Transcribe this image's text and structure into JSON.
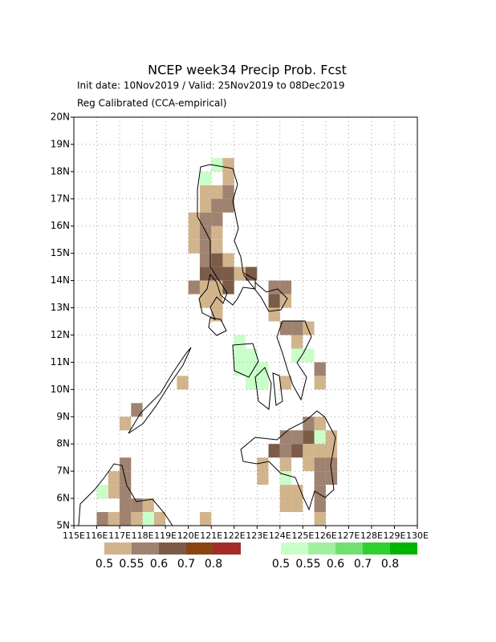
{
  "chart_data": {
    "type": "map",
    "title": "NCEP week34 Precip Prob. Fcst",
    "subtitle": "Init date: 10Nov2019 / Valid: 25Nov2019 to 08Dec2019",
    "note": "Reg Calibrated (CCA-empirical)",
    "xlim": [
      115,
      130
    ],
    "ylim": [
      5,
      20
    ],
    "grid": true,
    "xticks": [
      {
        "value": 115,
        "label": "115E"
      },
      {
        "value": 116,
        "label": "116E"
      },
      {
        "value": 117,
        "label": "117E"
      },
      {
        "value": 118,
        "label": "118E"
      },
      {
        "value": 119,
        "label": "119E"
      },
      {
        "value": 120,
        "label": "120E"
      },
      {
        "value": 121,
        "label": "121E"
      },
      {
        "value": 122,
        "label": "122E"
      },
      {
        "value": 123,
        "label": "123E"
      },
      {
        "value": 124,
        "label": "124E"
      },
      {
        "value": 125,
        "label": "125E"
      },
      {
        "value": 126,
        "label": "126E"
      },
      {
        "value": 127,
        "label": "127E"
      },
      {
        "value": 128,
        "label": "128E"
      },
      {
        "value": 129,
        "label": "129E"
      },
      {
        "value": 130,
        "label": "130E"
      }
    ],
    "yticks": [
      {
        "value": 5,
        "label": "5N"
      },
      {
        "value": 6,
        "label": "6N"
      },
      {
        "value": 7,
        "label": "7N"
      },
      {
        "value": 8,
        "label": "8N"
      },
      {
        "value": 9,
        "label": "9N"
      },
      {
        "value": 10,
        "label": "10N"
      },
      {
        "value": 11,
        "label": "11N"
      },
      {
        "value": 12,
        "label": "12N"
      },
      {
        "value": 13,
        "label": "13N"
      },
      {
        "value": 14,
        "label": "14N"
      },
      {
        "value": 15,
        "label": "15N"
      },
      {
        "value": 16,
        "label": "16N"
      },
      {
        "value": 17,
        "label": "17N"
      },
      {
        "value": 18,
        "label": "18N"
      },
      {
        "value": 19,
        "label": "19N"
      },
      {
        "value": 20,
        "label": "20N"
      }
    ],
    "colorbars": [
      {
        "ticks": [
          0.5,
          0.55,
          0.6,
          0.7,
          0.8
        ],
        "colors": [
          "#d2b48c",
          "#a08270",
          "#7c5c48",
          "#8b4513",
          "#a52a2a"
        ]
      },
      {
        "ticks": [
          0.5,
          0.55,
          0.6,
          0.7,
          0.8
        ],
        "colors": [
          "#c8ffc8",
          "#a0f0a0",
          "#70e070",
          "#30d030",
          "#00b400"
        ]
      }
    ],
    "dry_cells": {
      "lon": [
        121.5,
        121.5,
        120.5,
        121.0,
        121.5,
        120.5,
        121.0,
        121.5,
        120.0,
        120.5,
        121.0,
        120.0,
        120.5,
        121.0,
        120.0,
        120.5,
        121.0,
        120.5,
        121.0,
        121.5,
        120.5,
        121.0,
        121.5,
        122.0,
        122.5,
        120.0,
        120.5,
        121.0,
        121.5,
        120.5,
        121.0,
        121.0,
        123.5,
        124.0,
        123.5,
        124.0,
        123.5,
        124.0,
        124.5,
        125.0,
        124.5,
        125.5,
        125.5,
        124.0,
        125.0,
        125.5,
        124.0,
        124.5,
        125.0,
        125.5,
        126.0,
        123.5,
        124.0,
        124.5,
        125.0,
        125.5,
        126.0,
        123.0,
        124.0,
        125.0,
        125.5,
        126.0,
        123.0,
        125.5,
        126.0,
        124.0,
        124.5,
        125.5,
        124.0,
        124.5,
        125.5,
        125.5,
        117.5,
        117.0,
        117.0,
        116.5,
        117.0,
        116.5,
        117.0,
        117.0,
        117.5,
        118.0,
        116.0,
        116.5,
        117.0,
        117.5,
        118.5,
        119.5,
        120.5
      ],
      "lat": [
        18.0,
        17.5,
        17.0,
        17.0,
        17.0,
        16.5,
        16.5,
        16.5,
        16.0,
        16.0,
        16.0,
        15.5,
        15.5,
        15.5,
        15.0,
        15.0,
        15.0,
        14.5,
        14.5,
        14.5,
        14.0,
        14.0,
        14.0,
        14.0,
        14.0,
        13.5,
        13.5,
        13.5,
        13.5,
        13.0,
        13.0,
        12.5,
        13.5,
        13.5,
        13.0,
        13.0,
        12.5,
        12.0,
        12.0,
        12.0,
        11.5,
        10.5,
        10.0,
        10.0,
        8.5,
        8.5,
        8.0,
        8.0,
        8.0,
        8.0,
        8.0,
        7.5,
        7.5,
        7.5,
        7.5,
        7.5,
        7.5,
        7.0,
        7.0,
        7.0,
        7.0,
        7.0,
        6.5,
        6.5,
        6.5,
        6.0,
        6.0,
        6.0,
        5.5,
        5.5,
        5.5,
        5.0,
        9.0,
        8.5,
        7.0,
        6.5,
        6.5,
        6.0,
        6.0,
        5.5,
        5.5,
        5.5,
        5.0,
        5.0,
        5.0,
        5.0,
        5.0,
        10.0,
        5.0
      ],
      "values": [
        0.52,
        0.52,
        0.52,
        0.52,
        0.57,
        0.52,
        0.57,
        0.57,
        0.52,
        0.57,
        0.57,
        0.52,
        0.57,
        0.52,
        0.52,
        0.57,
        0.52,
        0.57,
        0.62,
        0.52,
        0.62,
        0.62,
        0.62,
        0.52,
        0.62,
        0.57,
        0.52,
        0.52,
        0.62,
        0.52,
        0.52,
        0.52,
        0.57,
        0.57,
        0.62,
        0.52,
        0.52,
        0.57,
        0.57,
        0.52,
        0.52,
        0.57,
        0.52,
        0.52,
        0.57,
        0.52,
        0.57,
        0.57,
        0.62,
        0.52,
        0.52,
        0.62,
        0.57,
        0.62,
        0.52,
        0.52,
        0.52,
        0.52,
        0.52,
        0.52,
        0.57,
        0.57,
        0.52,
        0.57,
        0.57,
        0.52,
        0.52,
        0.57,
        0.52,
        0.52,
        0.57,
        0.52,
        0.57,
        0.52,
        0.57,
        0.52,
        0.57,
        0.52,
        0.57,
        0.57,
        0.57,
        0.52,
        0.57,
        0.52,
        0.57,
        0.52,
        0.52,
        0.52,
        0.52
      ]
    },
    "wet_cells": {
      "lon": [
        120.5,
        121.0,
        122.0,
        122.0,
        122.5,
        122.0,
        122.5,
        123.0,
        122.5,
        123.0,
        124.5,
        125.0,
        125.5,
        124.0,
        116.0,
        118.0
      ],
      "lat": [
        17.5,
        18.0,
        11.5,
        11.0,
        11.0,
        10.5,
        10.5,
        10.5,
        10.0,
        10.0,
        11.0,
        11.0,
        8.0,
        6.5,
        6.0,
        5.0
      ],
      "values": [
        0.52,
        0.52,
        0.52,
        0.52,
        0.52,
        0.52,
        0.52,
        0.52,
        0.52,
        0.52,
        0.52,
        0.52,
        0.52,
        0.52,
        0.52,
        0.52
      ]
    }
  }
}
